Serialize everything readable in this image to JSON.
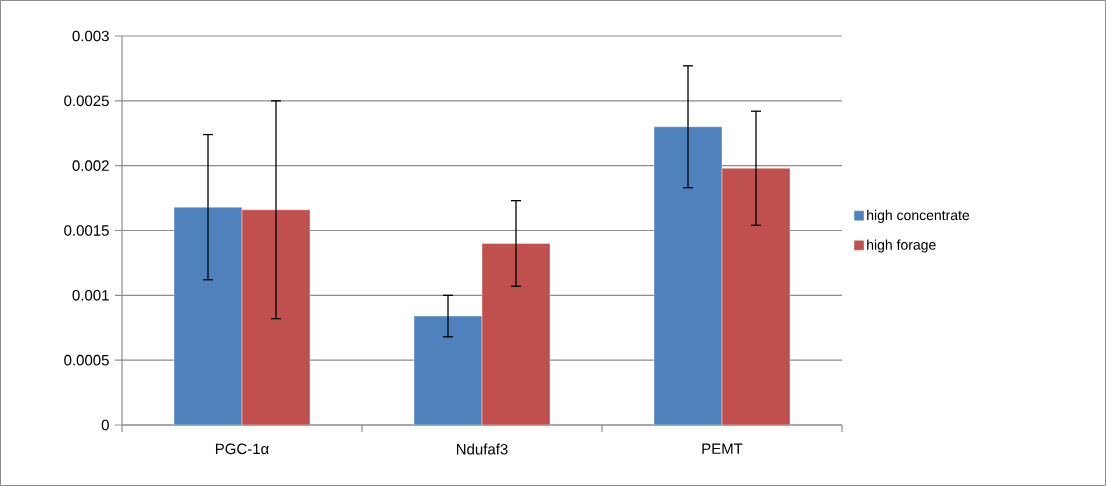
{
  "chart_data": {
    "type": "bar",
    "categories": [
      "PGC-1α",
      "Ndufaf3",
      "PEMT"
    ],
    "series": [
      {
        "name": "high concentrate",
        "color": "#4f81bd",
        "values": [
          0.00168,
          0.00084,
          0.0023
        ],
        "errors": [
          0.00056,
          0.00016,
          0.00047
        ]
      },
      {
        "name": "high forage",
        "color": "#c0504d",
        "values": [
          0.00166,
          0.0014,
          0.00198
        ],
        "errors": [
          0.00084,
          0.00033,
          0.00044
        ]
      }
    ],
    "ylim": [
      0,
      0.003
    ],
    "yticks": [
      0,
      0.0005,
      0.001,
      0.0015,
      0.002,
      0.0025,
      0.003
    ],
    "grid": "y",
    "legend": "right"
  }
}
